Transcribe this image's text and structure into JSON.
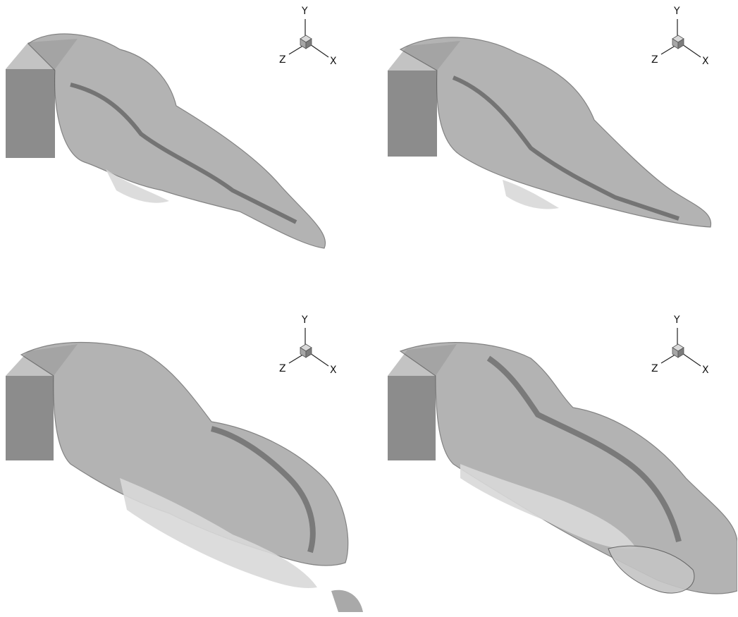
{
  "panels": [
    {
      "id": "panel-1",
      "triad": {
        "y": "Y",
        "z": "Z",
        "x": "X"
      }
    },
    {
      "id": "panel-2",
      "triad": {
        "y": "Y",
        "z": "Z",
        "x": "X"
      }
    },
    {
      "id": "panel-3",
      "triad": {
        "y": "Y",
        "z": "Z",
        "x": "X"
      }
    },
    {
      "id": "panel-4",
      "triad": {
        "y": "Y",
        "z": "Z",
        "x": "X"
      }
    }
  ],
  "colors": {
    "box_front": "#8c8c8c",
    "box_side": "#bdbdbd",
    "surface_light": "#c9c9c9",
    "surface_dark": "#6f6f6f",
    "surface_mid": "#9a9a9a"
  }
}
